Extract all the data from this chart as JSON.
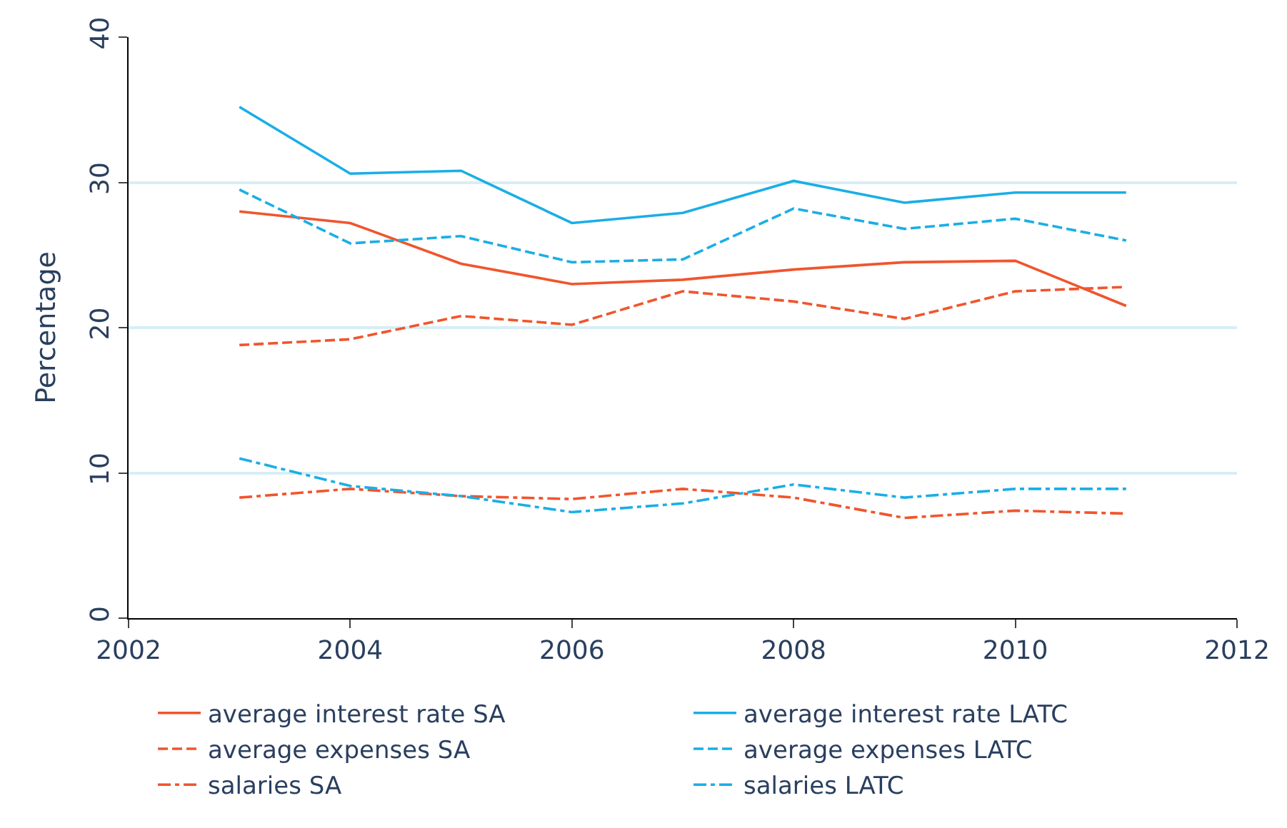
{
  "chart_data": {
    "type": "line",
    "ylabel": "Percentage",
    "x": [
      2003,
      2004,
      2005,
      2006,
      2007,
      2008,
      2009,
      2010,
      2011
    ],
    "xlim": [
      2002,
      2012
    ],
    "xticks": [
      2002,
      2004,
      2006,
      2008,
      2010,
      2012
    ],
    "ylim": [
      0,
      40
    ],
    "yticks": [
      0,
      10,
      20,
      30,
      40
    ],
    "grid": "y",
    "legend": "bottom",
    "marker": "none",
    "series": [
      {
        "name": "average interest rate SA",
        "color": "#f0552d",
        "line_style": "solid",
        "values": [
          28.0,
          27.2,
          24.4,
          23.0,
          23.3,
          24.0,
          24.5,
          24.6,
          21.5
        ]
      },
      {
        "name": "average interest rate LATC",
        "color": "#1aaee6",
        "line_style": "solid",
        "values": [
          35.2,
          30.6,
          30.8,
          27.2,
          27.9,
          30.1,
          28.6,
          29.3,
          29.3
        ]
      },
      {
        "name": "average expenses SA",
        "color": "#f0552d",
        "line_style": "dashed",
        "values": [
          18.8,
          19.2,
          20.8,
          20.2,
          22.5,
          21.8,
          20.6,
          22.5,
          22.8
        ]
      },
      {
        "name": "average expenses LATC",
        "color": "#1aaee6",
        "line_style": "dashed",
        "values": [
          29.5,
          25.8,
          26.3,
          24.5,
          24.7,
          28.2,
          26.8,
          27.5,
          26.0
        ]
      },
      {
        "name": "salaries SA",
        "color": "#f0552d",
        "line_style": "dashdot",
        "values": [
          8.3,
          8.9,
          8.4,
          8.2,
          8.9,
          8.3,
          6.9,
          7.4,
          7.2
        ]
      },
      {
        "name": "salaries LATC",
        "color": "#1aaee6",
        "line_style": "dashdot",
        "values": [
          11.0,
          9.1,
          8.4,
          7.3,
          7.9,
          9.2,
          8.3,
          8.9,
          8.9
        ]
      }
    ]
  }
}
